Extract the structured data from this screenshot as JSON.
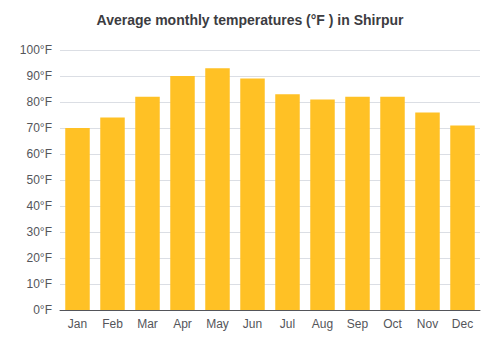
{
  "chart_data": {
    "type": "bar",
    "title": "Average monthly temperatures (°F ) in Shirpur",
    "categories": [
      "Jan",
      "Feb",
      "Mar",
      "Apr",
      "May",
      "Jun",
      "Jul",
      "Aug",
      "Sep",
      "Oct",
      "Nov",
      "Dec"
    ],
    "values": [
      70,
      74,
      82,
      90,
      93,
      89,
      83,
      81,
      82,
      82,
      76,
      71
    ],
    "color": "#FFC125",
    "ylim": [
      0,
      100
    ],
    "yticks": [
      {
        "value": 0,
        "label": "0°F"
      },
      {
        "value": 10,
        "label": "10°F"
      },
      {
        "value": 20,
        "label": "20°F"
      },
      {
        "value": 30,
        "label": "30°F"
      },
      {
        "value": 40,
        "label": "40°F"
      },
      {
        "value": 50,
        "label": "50°F"
      },
      {
        "value": 60,
        "label": "60°F"
      },
      {
        "value": 70,
        "label": "70°F"
      },
      {
        "value": 80,
        "label": "80°F"
      },
      {
        "value": 90,
        "label": "90°F"
      },
      {
        "value": 100,
        "label": "100°F"
      }
    ],
    "grid": true
  }
}
